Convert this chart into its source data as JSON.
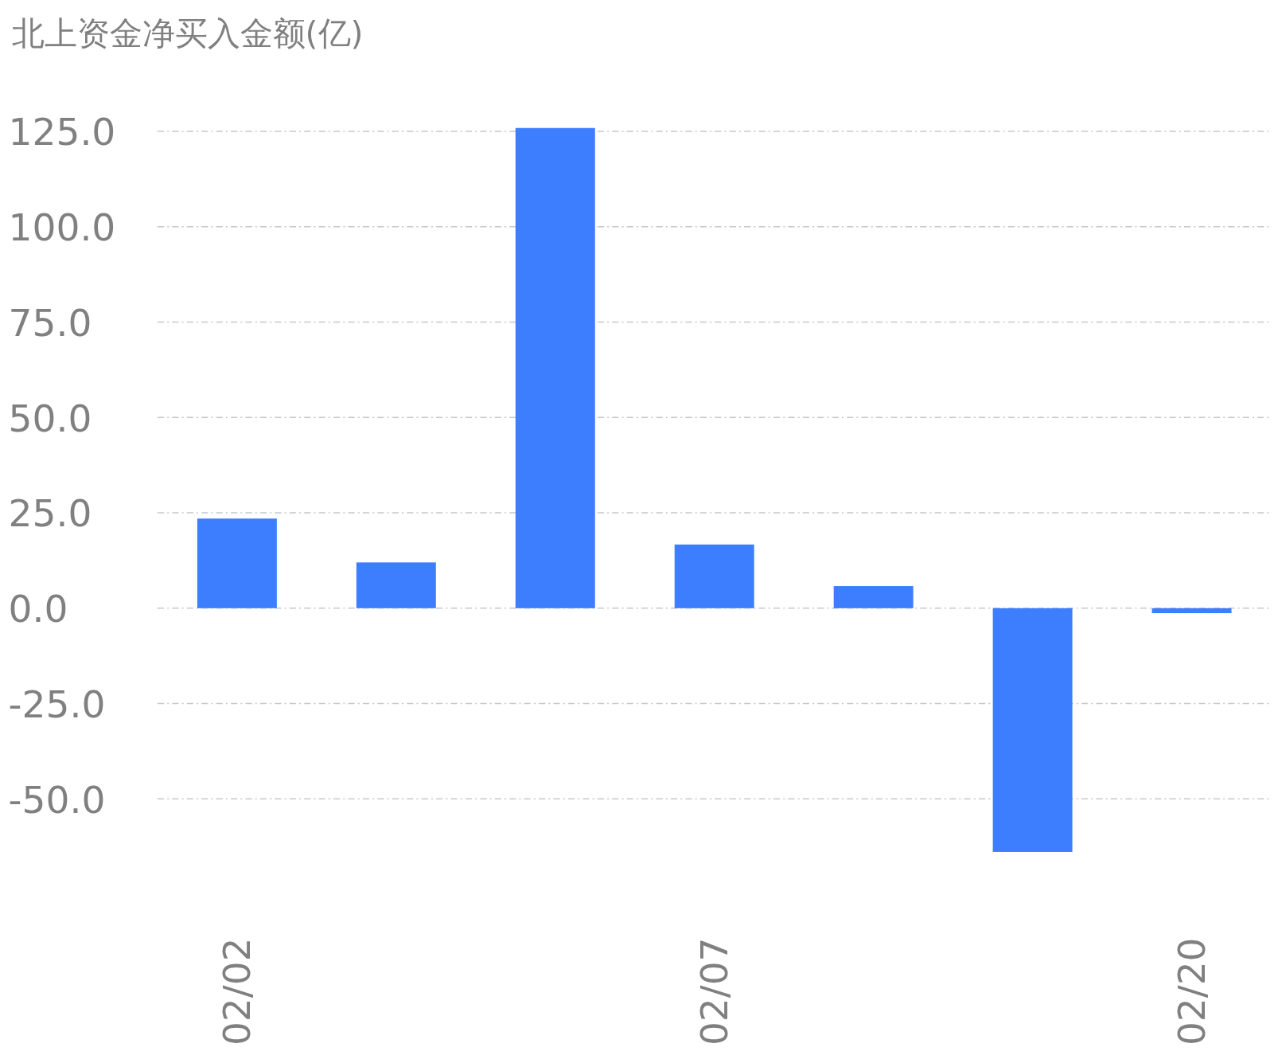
{
  "chart_data": {
    "type": "bar",
    "title": "北上资金净买入金额(亿)",
    "categories": [
      "02/02",
      null,
      null,
      "02/07",
      null,
      null,
      "02/20"
    ],
    "values": [
      23.5,
      12.0,
      125.9,
      16.7,
      5.8,
      -63.9,
      -1.3
    ],
    "color": "#3d7eff",
    "ylim": [
      -63.9,
      125.9
    ],
    "yticks": [
      {
        "value": -50,
        "label": "-50.0"
      },
      {
        "value": -25,
        "label": "-25.0"
      },
      {
        "value": 0,
        "label": "0.0"
      },
      {
        "value": 25,
        "label": "25.0"
      },
      {
        "value": 50,
        "label": "50.0"
      },
      {
        "value": 75,
        "label": "75.0"
      },
      {
        "value": 100,
        "label": "100.0"
      },
      {
        "value": 125,
        "label": "125.0"
      }
    ],
    "grid": "y"
  }
}
